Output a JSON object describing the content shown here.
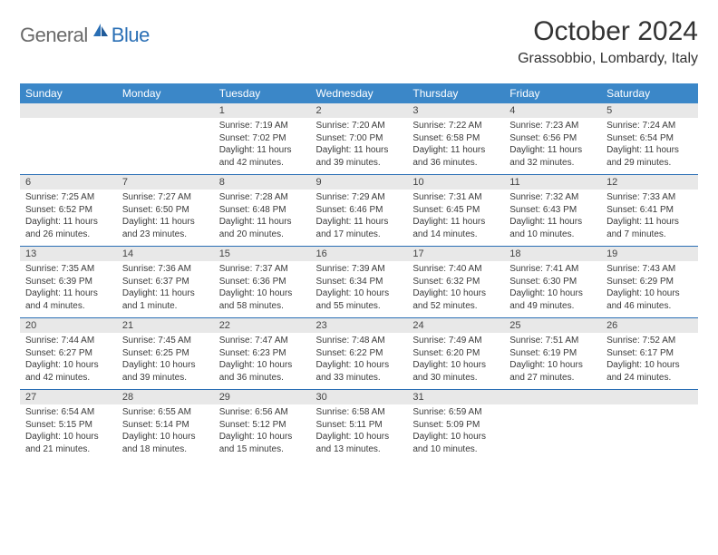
{
  "logo": {
    "general": "General",
    "blue": "Blue"
  },
  "title": "October 2024",
  "location": "Grassobbio, Lombardy, Italy",
  "colors": {
    "header_bg": "#3b87c8",
    "header_text": "#ffffff",
    "daynum_bg": "#e8e8e8",
    "rule": "#2a6fb5",
    "logo_gray": "#6a6a6a",
    "logo_blue": "#2a6fb5",
    "body_text": "#3a3a3a"
  },
  "day_headers": [
    "Sunday",
    "Monday",
    "Tuesday",
    "Wednesday",
    "Thursday",
    "Friday",
    "Saturday"
  ],
  "weeks": [
    [
      {
        "n": "",
        "sr": "",
        "ss": "",
        "dl": ""
      },
      {
        "n": "",
        "sr": "",
        "ss": "",
        "dl": ""
      },
      {
        "n": "1",
        "sr": "Sunrise: 7:19 AM",
        "ss": "Sunset: 7:02 PM",
        "dl": "Daylight: 11 hours and 42 minutes."
      },
      {
        "n": "2",
        "sr": "Sunrise: 7:20 AM",
        "ss": "Sunset: 7:00 PM",
        "dl": "Daylight: 11 hours and 39 minutes."
      },
      {
        "n": "3",
        "sr": "Sunrise: 7:22 AM",
        "ss": "Sunset: 6:58 PM",
        "dl": "Daylight: 11 hours and 36 minutes."
      },
      {
        "n": "4",
        "sr": "Sunrise: 7:23 AM",
        "ss": "Sunset: 6:56 PM",
        "dl": "Daylight: 11 hours and 32 minutes."
      },
      {
        "n": "5",
        "sr": "Sunrise: 7:24 AM",
        "ss": "Sunset: 6:54 PM",
        "dl": "Daylight: 11 hours and 29 minutes."
      }
    ],
    [
      {
        "n": "6",
        "sr": "Sunrise: 7:25 AM",
        "ss": "Sunset: 6:52 PM",
        "dl": "Daylight: 11 hours and 26 minutes."
      },
      {
        "n": "7",
        "sr": "Sunrise: 7:27 AM",
        "ss": "Sunset: 6:50 PM",
        "dl": "Daylight: 11 hours and 23 minutes."
      },
      {
        "n": "8",
        "sr": "Sunrise: 7:28 AM",
        "ss": "Sunset: 6:48 PM",
        "dl": "Daylight: 11 hours and 20 minutes."
      },
      {
        "n": "9",
        "sr": "Sunrise: 7:29 AM",
        "ss": "Sunset: 6:46 PM",
        "dl": "Daylight: 11 hours and 17 minutes."
      },
      {
        "n": "10",
        "sr": "Sunrise: 7:31 AM",
        "ss": "Sunset: 6:45 PM",
        "dl": "Daylight: 11 hours and 14 minutes."
      },
      {
        "n": "11",
        "sr": "Sunrise: 7:32 AM",
        "ss": "Sunset: 6:43 PM",
        "dl": "Daylight: 11 hours and 10 minutes."
      },
      {
        "n": "12",
        "sr": "Sunrise: 7:33 AM",
        "ss": "Sunset: 6:41 PM",
        "dl": "Daylight: 11 hours and 7 minutes."
      }
    ],
    [
      {
        "n": "13",
        "sr": "Sunrise: 7:35 AM",
        "ss": "Sunset: 6:39 PM",
        "dl": "Daylight: 11 hours and 4 minutes."
      },
      {
        "n": "14",
        "sr": "Sunrise: 7:36 AM",
        "ss": "Sunset: 6:37 PM",
        "dl": "Daylight: 11 hours and 1 minute."
      },
      {
        "n": "15",
        "sr": "Sunrise: 7:37 AM",
        "ss": "Sunset: 6:36 PM",
        "dl": "Daylight: 10 hours and 58 minutes."
      },
      {
        "n": "16",
        "sr": "Sunrise: 7:39 AM",
        "ss": "Sunset: 6:34 PM",
        "dl": "Daylight: 10 hours and 55 minutes."
      },
      {
        "n": "17",
        "sr": "Sunrise: 7:40 AM",
        "ss": "Sunset: 6:32 PM",
        "dl": "Daylight: 10 hours and 52 minutes."
      },
      {
        "n": "18",
        "sr": "Sunrise: 7:41 AM",
        "ss": "Sunset: 6:30 PM",
        "dl": "Daylight: 10 hours and 49 minutes."
      },
      {
        "n": "19",
        "sr": "Sunrise: 7:43 AM",
        "ss": "Sunset: 6:29 PM",
        "dl": "Daylight: 10 hours and 46 minutes."
      }
    ],
    [
      {
        "n": "20",
        "sr": "Sunrise: 7:44 AM",
        "ss": "Sunset: 6:27 PM",
        "dl": "Daylight: 10 hours and 42 minutes."
      },
      {
        "n": "21",
        "sr": "Sunrise: 7:45 AM",
        "ss": "Sunset: 6:25 PM",
        "dl": "Daylight: 10 hours and 39 minutes."
      },
      {
        "n": "22",
        "sr": "Sunrise: 7:47 AM",
        "ss": "Sunset: 6:23 PM",
        "dl": "Daylight: 10 hours and 36 minutes."
      },
      {
        "n": "23",
        "sr": "Sunrise: 7:48 AM",
        "ss": "Sunset: 6:22 PM",
        "dl": "Daylight: 10 hours and 33 minutes."
      },
      {
        "n": "24",
        "sr": "Sunrise: 7:49 AM",
        "ss": "Sunset: 6:20 PM",
        "dl": "Daylight: 10 hours and 30 minutes."
      },
      {
        "n": "25",
        "sr": "Sunrise: 7:51 AM",
        "ss": "Sunset: 6:19 PM",
        "dl": "Daylight: 10 hours and 27 minutes."
      },
      {
        "n": "26",
        "sr": "Sunrise: 7:52 AM",
        "ss": "Sunset: 6:17 PM",
        "dl": "Daylight: 10 hours and 24 minutes."
      }
    ],
    [
      {
        "n": "27",
        "sr": "Sunrise: 6:54 AM",
        "ss": "Sunset: 5:15 PM",
        "dl": "Daylight: 10 hours and 21 minutes."
      },
      {
        "n": "28",
        "sr": "Sunrise: 6:55 AM",
        "ss": "Sunset: 5:14 PM",
        "dl": "Daylight: 10 hours and 18 minutes."
      },
      {
        "n": "29",
        "sr": "Sunrise: 6:56 AM",
        "ss": "Sunset: 5:12 PM",
        "dl": "Daylight: 10 hours and 15 minutes."
      },
      {
        "n": "30",
        "sr": "Sunrise: 6:58 AM",
        "ss": "Sunset: 5:11 PM",
        "dl": "Daylight: 10 hours and 13 minutes."
      },
      {
        "n": "31",
        "sr": "Sunrise: 6:59 AM",
        "ss": "Sunset: 5:09 PM",
        "dl": "Daylight: 10 hours and 10 minutes."
      },
      {
        "n": "",
        "sr": "",
        "ss": "",
        "dl": ""
      },
      {
        "n": "",
        "sr": "",
        "ss": "",
        "dl": ""
      }
    ]
  ]
}
